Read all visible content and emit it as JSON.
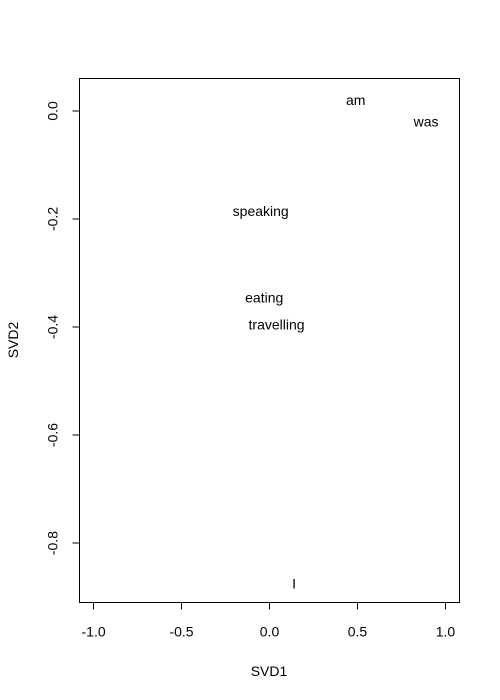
{
  "chart_data": {
    "type": "scatter",
    "title": "",
    "xlabel": "SVD1",
    "ylabel": "SVD2",
    "xlim": [
      -1.08,
      1.08
    ],
    "ylim": [
      -0.91,
      0.06
    ],
    "xticks": [
      -1.0,
      -0.5,
      0.0,
      0.5,
      1.0
    ],
    "xtick_labels": [
      "-1.0",
      "-0.5",
      "0.0",
      "0.5",
      "1.0"
    ],
    "yticks": [
      -0.8,
      -0.6,
      -0.4,
      -0.2,
      0.0
    ],
    "ytick_labels": [
      "-0.8",
      "-0.6",
      "-0.4",
      "-0.2",
      "0.0"
    ],
    "grid": false,
    "points": [
      {
        "label": "am",
        "x": 0.49,
        "y": 0.02
      },
      {
        "label": "was",
        "x": 0.89,
        "y": -0.02
      },
      {
        "label": "speaking",
        "x": -0.05,
        "y": -0.185
      },
      {
        "label": "eating",
        "x": -0.03,
        "y": -0.345
      },
      {
        "label": "travelling",
        "x": 0.04,
        "y": -0.395
      },
      {
        "label": "I",
        "x": 0.14,
        "y": -0.875
      }
    ]
  }
}
